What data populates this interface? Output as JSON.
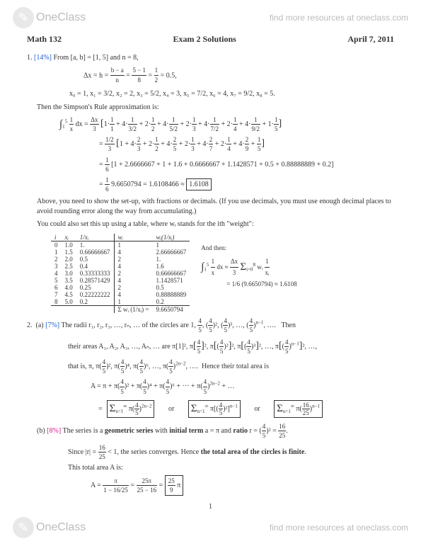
{
  "site": {
    "brand": "OneClass",
    "tagline": "find more resources at oneclass.com"
  },
  "header": {
    "course": "Math 132",
    "title": "Exam 2 Solutions",
    "date": "April 7, 2011"
  },
  "q1": {
    "pct": "[14%]",
    "intro": "From [a, b] = [1, 5] and n = 8,",
    "dx_eq": "Δx = h = (b−a)/n = (5−1)/8 = 1/2 = 0.5,",
    "xs": "x₀ = 1,   x₁ = 3/2,   x₂ = 2,   x₃ = 5/2,   x₄ = 3,   x₅ = 7/2,   x₆ = 4,   x₇ = 9/2,   x₈ = 5.",
    "simpson_label": "Then the Simpson's Rule approximation is:",
    "line_a": "∫₁⁵ 1/x dx = (Δx/3) [1·1/1 + 4·1/(3/2) + 2·1/2 + 4·1/(5/2) + 2·1/3 + 4·1/(7/2) + 2·1/4 + 4·1/(9/2) + 1·1/5]",
    "line_b": "= (1/2)/3 [1 + 4·2/3 + 2·1/2 + 4·2/5 + 2·1/3 + 4·2/7 + 2·1/4 + 4·2/9 + 1/5]",
    "line_c": "= 1/6 [1 + 2.6666667 + 1 + 1.6 + 0.6666667 + 1.1428571 + 0.5 + 0.88888889 + 0.2]",
    "line_d_pre": "= 1/6 · 9.6650794 = 1.6108466 ≈ ",
    "line_d_box": "1.6108",
    "note1": "Above, you need to show the set-up, with fractions or decimals. (If you use decimals, you must use enough decimal places to avoid rounding error along the way from accumulating.)",
    "note2": "You could also set this up using a table, where wᵢ stands for the ith \"weight\":",
    "and_then": "And then:",
    "side1": "∫₁⁵ 1/x dx ≈ (Δx/3) Σ wᵢ · 1/xᵢ",
    "side2": "= 1/6 (9.6650794) ≈ 1.6108",
    "table": {
      "headers": [
        "i",
        "xᵢ",
        "1/xᵢ",
        "wᵢ",
        "wᵢ(1/xᵢ)"
      ],
      "rows": [
        [
          "0",
          "1.0",
          "1.",
          "1",
          "1"
        ],
        [
          "1",
          "1.5",
          "0.66666667",
          "4",
          "2.66666667"
        ],
        [
          "2",
          "2.0",
          "0.5",
          "2",
          "1."
        ],
        [
          "3",
          "2.5",
          "0.4",
          "4",
          "1.6"
        ],
        [
          "4",
          "3.0",
          "0.33333333",
          "2",
          "0.66666667"
        ],
        [
          "5",
          "3.5",
          "0.28571429",
          "4",
          "1.1428571"
        ],
        [
          "6",
          "4.0",
          "0.25",
          "2",
          "0.5"
        ],
        [
          "7",
          "4.5",
          "0.22222222",
          "4",
          "0.88888889"
        ],
        [
          "8",
          "5.0",
          "0.2",
          "1",
          "0.2"
        ]
      ],
      "sum_label": "Σ wᵢ (1/xᵢ) =",
      "sum_val": "9.6650794"
    }
  },
  "q2a": {
    "pct": "[7%]",
    "radii": "The radii r₁, r₂, r₃, …, rₙ, … of the circles are 1, 4/5, (4/5)², (4/5)³, …, (4/5)ⁿ⁻¹, ….   Then",
    "areas1": "their areas A₁, A₂, A₃, …, Aₙ, … are π[1]², π[4/5]², π[(4/5)²]², π[(4/5)³]², …, π[(4/5)ⁿ⁻¹]², …,",
    "areas2": "that is, π, π(4/5)², π(4/5)⁴, π(4/5)⁶, …, π(4/5)²ⁿ⁻², ….   Hence their total area is",
    "aeq": "A = π + π(4/5)² + π(4/5)⁴ + π(4/5)⁶ + ··· + π(4/5)²ⁿ⁻² + …",
    "box1": "Σ π(4/5)²ⁿ⁻²",
    "or": "or",
    "box2": "Σ π[(4/5)²]ⁿ⁻¹",
    "box3": "Σ π(16/25)ⁿ⁻¹",
    "sum_sub": "n=1",
    "sum_sup": "∞"
  },
  "q2b": {
    "pct": "[8%]",
    "text": "The series is a geometric series with initial term a = π and ratio r = (4/5)² = 16/25.",
    "since": "Since |r| = 16/25 < 1, the series converges. Hence the total area of the circles is finite.",
    "total_label": "This total area A is:",
    "eq_pre": "A = π / (1 − 16/25) = 25π / (25 − 16) = ",
    "eq_box": "25/9 π"
  },
  "page": "1"
}
